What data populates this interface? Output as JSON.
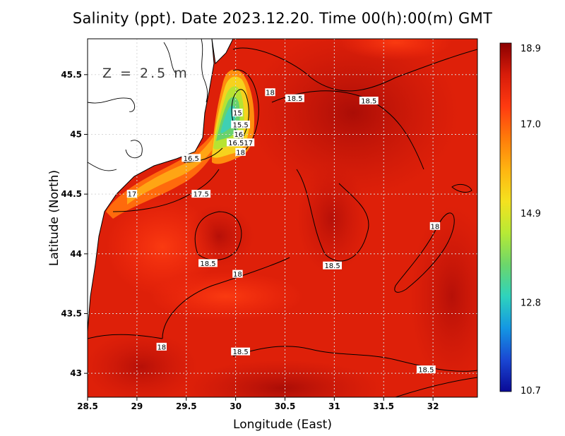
{
  "title": "Salinity (ppt). Date 2023.12.20. Time 00(h):00(m) GMT",
  "depth_label": "Z = 2.5 m",
  "axes": {
    "xlabel": "Longitude (East)",
    "ylabel": "Latitude (North)",
    "x_ticks": [
      "28.5",
      "29",
      "29.5",
      "30",
      "30.5",
      "31",
      "31.5",
      "32"
    ],
    "y_ticks": [
      "45.5",
      "45",
      "44.5",
      "44",
      "43.5",
      "43"
    ]
  },
  "colorbar": {
    "min": 10.7,
    "max": 18.9,
    "ticks": [
      "18.9",
      "17.0",
      "14.9",
      "12.8",
      "10.7"
    ],
    "colors": [
      "#8b0000",
      "#d81c0a",
      "#ff3a10",
      "#ff7b0a",
      "#ffb511",
      "#f4e21f",
      "#b7ea35",
      "#6cd66b",
      "#2ed3bd",
      "#1497e3",
      "#1a47d3",
      "#0a0a96"
    ]
  },
  "map": {
    "lon_range": [
      28.5,
      32.45
    ],
    "lat_range": [
      42.8,
      45.8
    ],
    "grid": true,
    "land_color": "#ffffff",
    "coastline_color": "#000000"
  },
  "contour_labels": [
    {
      "text": "18",
      "lon": 30.35,
      "lat": 45.35
    },
    {
      "text": "18.5",
      "lon": 30.6,
      "lat": 45.3
    },
    {
      "text": "18.5",
      "lon": 31.35,
      "lat": 45.28
    },
    {
      "text": "15",
      "lon": 30.02,
      "lat": 45.18
    },
    {
      "text": "15.5",
      "lon": 30.05,
      "lat": 45.08
    },
    {
      "text": "16",
      "lon": 30.03,
      "lat": 45.0
    },
    {
      "text": "16.517",
      "lon": 30.05,
      "lat": 44.93
    },
    {
      "text": "18",
      "lon": 30.05,
      "lat": 44.85
    },
    {
      "text": "16.5",
      "lon": 29.55,
      "lat": 44.8
    },
    {
      "text": "17",
      "lon": 28.95,
      "lat": 44.5
    },
    {
      "text": "17.5",
      "lon": 29.65,
      "lat": 44.5
    },
    {
      "text": "18",
      "lon": 32.02,
      "lat": 44.23
    },
    {
      "text": "18.5",
      "lon": 29.72,
      "lat": 43.92
    },
    {
      "text": "18",
      "lon": 30.02,
      "lat": 43.83
    },
    {
      "text": "18.5",
      "lon": 30.98,
      "lat": 43.9
    },
    {
      "text": "18",
      "lon": 29.25,
      "lat": 43.22
    },
    {
      "text": "18.5",
      "lon": 30.05,
      "lat": 43.18
    },
    {
      "text": "18.5",
      "lon": 31.93,
      "lat": 43.03
    }
  ]
}
